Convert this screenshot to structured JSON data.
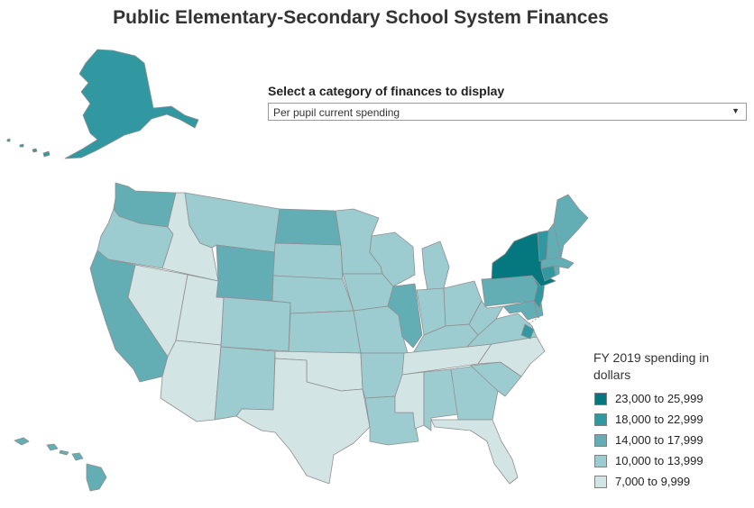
{
  "title": "Public Elementary-Secondary School System Finances",
  "selector": {
    "label": "Select a category of finances to display",
    "value": "Per pupil current spending"
  },
  "legend": {
    "title": "FY 2019 spending in dollars",
    "items": [
      {
        "label": "23,000 to 25,999",
        "color": "#05787f"
      },
      {
        "label": "18,000 to 22,999",
        "color": "#3198a1"
      },
      {
        "label": "14,000 to 17,999",
        "color": "#63adb5"
      },
      {
        "label": "10,000 to 13,999",
        "color": "#9ccbd0"
      },
      {
        "label": "7,000 to 9,999",
        "color": "#d3e4e5"
      }
    ]
  },
  "states": [
    {
      "name": "Alaska",
      "bin": 1
    },
    {
      "name": "Hawaii",
      "bin": 2
    },
    {
      "name": "Washington",
      "bin": 2
    },
    {
      "name": "Oregon",
      "bin": 3
    },
    {
      "name": "California",
      "bin": 2
    },
    {
      "name": "Idaho",
      "bin": 4
    },
    {
      "name": "Nevada",
      "bin": 4
    },
    {
      "name": "Utah",
      "bin": 4
    },
    {
      "name": "Arizona",
      "bin": 4
    },
    {
      "name": "Montana",
      "bin": 3
    },
    {
      "name": "Wyoming",
      "bin": 2
    },
    {
      "name": "Colorado",
      "bin": 3
    },
    {
      "name": "New Mexico",
      "bin": 3
    },
    {
      "name": "North Dakota",
      "bin": 2
    },
    {
      "name": "South Dakota",
      "bin": 3
    },
    {
      "name": "Nebraska",
      "bin": 3
    },
    {
      "name": "Kansas",
      "bin": 3
    },
    {
      "name": "Oklahoma",
      "bin": 4
    },
    {
      "name": "Texas",
      "bin": 4
    },
    {
      "name": "Minnesota",
      "bin": 3
    },
    {
      "name": "Iowa",
      "bin": 3
    },
    {
      "name": "Missouri",
      "bin": 3
    },
    {
      "name": "Arkansas",
      "bin": 3
    },
    {
      "name": "Louisiana",
      "bin": 3
    },
    {
      "name": "Wisconsin",
      "bin": 3
    },
    {
      "name": "Illinois",
      "bin": 2
    },
    {
      "name": "Michigan",
      "bin": 3
    },
    {
      "name": "Indiana",
      "bin": 3
    },
    {
      "name": "Ohio",
      "bin": 3
    },
    {
      "name": "Kentucky",
      "bin": 3
    },
    {
      "name": "Tennessee",
      "bin": 4
    },
    {
      "name": "Mississippi",
      "bin": 4
    },
    {
      "name": "Alabama",
      "bin": 3
    },
    {
      "name": "Georgia",
      "bin": 3
    },
    {
      "name": "Florida",
      "bin": 4
    },
    {
      "name": "South Carolina",
      "bin": 3
    },
    {
      "name": "North Carolina",
      "bin": 4
    },
    {
      "name": "Virginia",
      "bin": 3
    },
    {
      "name": "West Virginia",
      "bin": 3
    },
    {
      "name": "Pennsylvania",
      "bin": 2
    },
    {
      "name": "Maryland",
      "bin": 2
    },
    {
      "name": "Delaware",
      "bin": 2
    },
    {
      "name": "District of Columbia",
      "bin": 1
    },
    {
      "name": "New Jersey",
      "bin": 1
    },
    {
      "name": "New York",
      "bin": 0
    },
    {
      "name": "Connecticut",
      "bin": 1
    },
    {
      "name": "Rhode Island",
      "bin": 2
    },
    {
      "name": "Massachusetts",
      "bin": 2
    },
    {
      "name": "Vermont",
      "bin": 1
    },
    {
      "name": "New Hampshire",
      "bin": 2
    },
    {
      "name": "Maine",
      "bin": 2
    }
  ]
}
